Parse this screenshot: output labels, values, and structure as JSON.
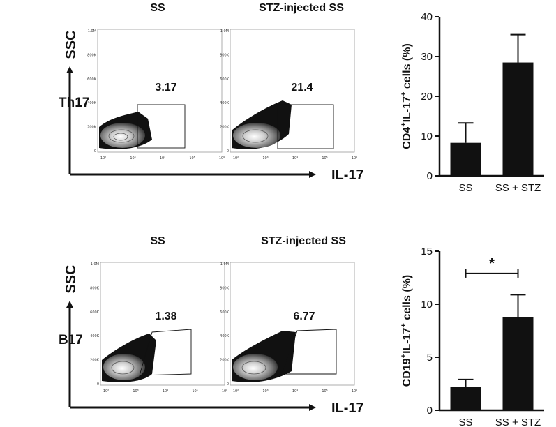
{
  "chart_data": [
    {
      "type": "flow-cytometry-panel",
      "row_label": "Th17",
      "column_titles": [
        "SS",
        "STZ-injected SS"
      ],
      "y_axis_label": "SSC",
      "x_axis_label": "IL-17",
      "y_tick_labels": [
        "1.0M",
        "800K",
        "600K",
        "400K",
        "200K",
        "0"
      ],
      "x_tick_labels": [
        "10²",
        "10³",
        "10⁴",
        "10⁵",
        "10⁶"
      ],
      "gate_values": [
        "3.17",
        "21.4"
      ]
    },
    {
      "type": "bar",
      "categories": [
        "SS",
        "SS + STZ"
      ],
      "values": [
        8.3,
        28.5
      ],
      "errors": [
        5.0,
        7.0
      ],
      "ylabel_parts": [
        "CD4",
        "+",
        "IL-17",
        "+",
        " cells (%)"
      ],
      "ylim": [
        0,
        40
      ],
      "yticks": [
        "0",
        "10",
        "20",
        "30",
        "40"
      ],
      "significance": ""
    },
    {
      "type": "flow-cytometry-panel",
      "row_label": "B17",
      "column_titles": [
        "SS",
        "STZ-injected SS"
      ],
      "y_axis_label": "SSC",
      "x_axis_label": "IL-17",
      "y_tick_labels": [
        "1.0M",
        "800K",
        "600K",
        "400K",
        "200K",
        "0"
      ],
      "x_tick_labels": [
        "10²",
        "10³",
        "10⁴",
        "10⁵",
        "10⁶"
      ],
      "gate_values": [
        "1.38",
        "6.77"
      ]
    },
    {
      "type": "bar",
      "categories": [
        "SS",
        "SS + STZ"
      ],
      "values": [
        2.2,
        8.8
      ],
      "errors": [
        0.7,
        2.1
      ],
      "ylabel_parts": [
        "CD19",
        "+",
        "IL-17",
        "+",
        " cells (%)"
      ],
      "ylim": [
        0,
        15
      ],
      "yticks": [
        "0",
        "5",
        "10",
        "15"
      ],
      "significance": "*"
    }
  ]
}
